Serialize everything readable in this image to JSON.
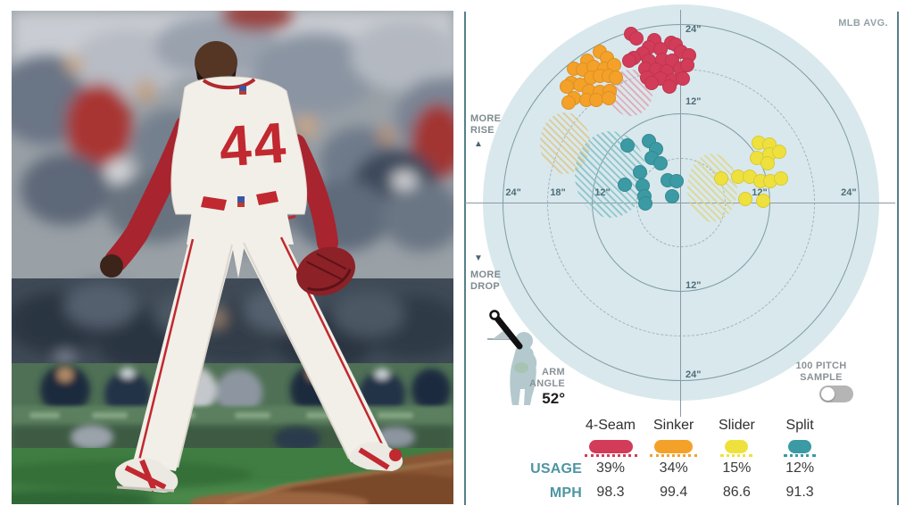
{
  "window": {
    "background": "#ffffff"
  },
  "photo": {
    "description": "Boston Red Sox relief pitcher, jersey number 44, seen from behind standing astride the mound before a blurred crowd and dugout",
    "jersey_number": "44",
    "colors": {
      "jersey_white": "#f2efe8",
      "number_red": "#c1282f",
      "cap_navy": "#1b2a4d",
      "undershirt_red": "#a8242f",
      "glove_maroon": "#8c2127",
      "grass_green": "#3f7d42",
      "mound_dirt": "#8a5634",
      "wall_green": "#4f7055"
    }
  },
  "chart": {
    "mlb_avg_label": "MLB AVG.",
    "more_rise_line1": "MORE",
    "more_rise_line2": "RISE",
    "more_drop_line1": "MORE",
    "more_drop_line2": "DROP",
    "arm_angle_line1": "ARM",
    "arm_angle_line2": "ANGLE",
    "arm_angle_value": "52°",
    "toggle_line1": "100 PITCH",
    "toggle_line2": "SAMPLE",
    "toggle_state": "off",
    "usage_label": "USAGE",
    "mph_label": "MPH",
    "colors": {
      "plot_bg": "#d9e8ed",
      "ring_solid": "#7f9ca4",
      "ring_dashed": "#9fb4ba",
      "axis": "#8a9aa2",
      "divider": "#567f8a",
      "tick_text": "#4e6d78",
      "teal_text": "#4e95a3",
      "value_text": "#3a3a3a"
    }
  },
  "chart_data": {
    "type": "scatter",
    "x_unit": "horizontal break (inches)",
    "y_unit": "vertical break (inches)",
    "xlim": [
      -27,
      27
    ],
    "ylim": [
      -27,
      27
    ],
    "rings": [
      {
        "r": 6,
        "style": "dashed",
        "label": ""
      },
      {
        "r": 12,
        "style": "solid",
        "label": "12\""
      },
      {
        "r": 18,
        "style": "dashed",
        "label": ""
      },
      {
        "r": 24,
        "style": "solid",
        "label": "24\""
      }
    ],
    "h_ticks": [
      {
        "x": -24,
        "text": "24\""
      },
      {
        "x": -18,
        "text": "18\""
      },
      {
        "x": -12,
        "text": "12\""
      },
      {
        "x": 12,
        "text": "12\""
      },
      {
        "x": 24,
        "text": "24\""
      }
    ],
    "v_ticks": [
      {
        "y": 24,
        "text": "24\""
      },
      {
        "y": 12,
        "text": "12\""
      },
      {
        "y": -12,
        "text": "12\""
      },
      {
        "y": -24,
        "text": "24\""
      }
    ],
    "series": [
      {
        "name": "4-Seam",
        "color": "#d23c58",
        "avg_color": "#e2a5b1",
        "usage": "39%",
        "mph": "98.3",
        "mlb_avg_ellipse": {
          "x": -6.8,
          "y": 14.8,
          "rx": 2.9,
          "ry": 3.1
        },
        "points": [
          [
            -6.7,
            22.7
          ],
          [
            -6.0,
            22.1
          ],
          [
            -3.6,
            21.8
          ],
          [
            -1.3,
            21.5
          ],
          [
            -4.3,
            20.9
          ],
          [
            -2.8,
            20.6
          ],
          [
            -0.7,
            21.2
          ],
          [
            -5.2,
            20.0
          ],
          [
            -6.4,
            19.4
          ],
          [
            0.0,
            20.3
          ],
          [
            1.1,
            19.8
          ],
          [
            -7.0,
            19.1
          ],
          [
            -4.3,
            19.1
          ],
          [
            -2.5,
            19.2
          ],
          [
            -1.2,
            19.1
          ],
          [
            -4.8,
            18.0
          ],
          [
            -3.4,
            17.9
          ],
          [
            -1.9,
            17.6
          ],
          [
            -0.1,
            18.0
          ],
          [
            0.8,
            18.5
          ],
          [
            -4.6,
            16.8
          ],
          [
            -2.8,
            16.7
          ],
          [
            -1.2,
            16.4
          ],
          [
            0.2,
            16.7
          ],
          [
            -4.0,
            16.1
          ],
          [
            -1.6,
            15.6
          ]
        ]
      },
      {
        "name": "Sinker",
        "color": "#f4a129",
        "avg_color": "#dcc88c",
        "usage": "34%",
        "mph": "99.4",
        "mlb_avg_ellipse": {
          "x": -15.6,
          "y": 8.0,
          "rx": 3.4,
          "ry": 4.1
        },
        "points": [
          [
            -10.9,
            20.3
          ],
          [
            -10.0,
            19.4
          ],
          [
            -12.6,
            19.1
          ],
          [
            -14.4,
            18.0
          ],
          [
            -13.2,
            17.9
          ],
          [
            -11.8,
            18.2
          ],
          [
            -10.3,
            18.0
          ],
          [
            -9.0,
            18.5
          ],
          [
            -14.8,
            16.1
          ],
          [
            -13.6,
            15.8
          ],
          [
            -12.1,
            16.8
          ],
          [
            -10.9,
            17.0
          ],
          [
            -9.7,
            17.0
          ],
          [
            -8.8,
            16.8
          ],
          [
            -12.4,
            15.0
          ],
          [
            -10.9,
            14.9
          ],
          [
            -9.6,
            15.0
          ],
          [
            -14.4,
            14.0
          ],
          [
            -12.7,
            13.8
          ],
          [
            -11.4,
            13.8
          ],
          [
            -15.1,
            13.4
          ],
          [
            -9.7,
            14.0
          ],
          [
            -15.4,
            15.6
          ]
        ]
      },
      {
        "name": "Slider",
        "color": "#efe13d",
        "avg_color": "#dcd78f",
        "usage": "15%",
        "mph": "86.6",
        "mlb_avg_ellipse": {
          "x": 4.2,
          "y": 2.0,
          "rx": 3.4,
          "ry": 4.6
        },
        "points": [
          [
            10.4,
            8.0
          ],
          [
            11.9,
            7.8
          ],
          [
            10.2,
            6.0
          ],
          [
            11.9,
            6.5
          ],
          [
            13.2,
            6.8
          ],
          [
            11.6,
            5.3
          ],
          [
            5.4,
            3.2
          ],
          [
            7.7,
            3.5
          ],
          [
            9.2,
            3.5
          ],
          [
            10.7,
            2.9
          ],
          [
            12.0,
            2.9
          ],
          [
            8.6,
            0.5
          ],
          [
            11.0,
            0.2
          ],
          [
            13.4,
            3.2
          ]
        ]
      },
      {
        "name": "Split",
        "color": "#3b9aa3",
        "avg_color": "#85c2c8",
        "usage": "12%",
        "mph": "91.3",
        "mlb_avg_ellipse": {
          "x": -9.5,
          "y": 3.8,
          "rx": 4.8,
          "ry": 5.8
        },
        "points": [
          [
            -7.2,
            7.7
          ],
          [
            -4.3,
            8.3
          ],
          [
            -3.4,
            7.2
          ],
          [
            -4.0,
            6.0
          ],
          [
            -2.8,
            5.3
          ],
          [
            -5.5,
            4.1
          ],
          [
            -7.6,
            2.4
          ],
          [
            -5.2,
            2.3
          ],
          [
            -1.8,
            3.0
          ],
          [
            -0.6,
            2.9
          ],
          [
            -4.9,
            0.8
          ],
          [
            -1.2,
            0.8
          ],
          [
            -4.8,
            -0.1
          ]
        ]
      }
    ],
    "legend_position": "bottom",
    "grid": "concentric rings every 6 inches, solid at 12 and 24, dashed at 6 and 18"
  }
}
